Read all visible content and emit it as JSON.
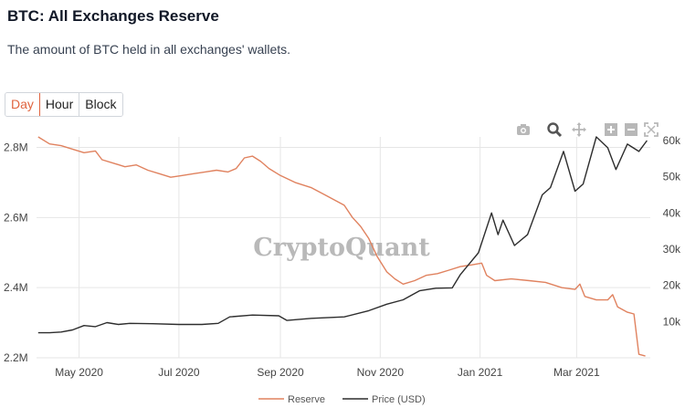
{
  "header": {
    "title": "BTC: All Exchanges Reserve",
    "subtitle": "The amount of BTC held in all exchanges' wallets."
  },
  "range_tabs": [
    {
      "label": "Day",
      "active": true
    },
    {
      "label": "Hour",
      "active": false
    },
    {
      "label": "Block",
      "active": false
    }
  ],
  "toolbar": {
    "icons": [
      "camera-icon",
      "zoom-icon",
      "pan-icon",
      "zoom-in-icon",
      "zoom-out-icon",
      "autoscale-icon"
    ]
  },
  "watermark": "CryptoQuant",
  "colors": {
    "reserve": "#e0825f",
    "price": "#2d2d2d",
    "accent": "#e0643f",
    "grid": "#e6e6e6"
  },
  "chart_data": {
    "type": "line",
    "x_range": [
      "2020-04-05",
      "2021-04-15"
    ],
    "x_ticks": [
      {
        "date": "2020-05-01",
        "label": "May 2020"
      },
      {
        "date": "2020-07-01",
        "label": "Jul 2020"
      },
      {
        "date": "2020-09-01",
        "label": "Sep 2020"
      },
      {
        "date": "2020-11-01",
        "label": "Nov 2020"
      },
      {
        "date": "2021-01-01",
        "label": "Jan 2021"
      },
      {
        "date": "2021-03-01",
        "label": "Mar 2021"
      }
    ],
    "y_left": {
      "range": [
        2200000,
        2830000
      ],
      "ticks": [
        {
          "value": 2200000,
          "label": "2.2M"
        },
        {
          "value": 2400000,
          "label": "2.4M"
        },
        {
          "value": 2600000,
          "label": "2.6M"
        },
        {
          "value": 2800000,
          "label": "2.8M"
        }
      ]
    },
    "y_right": {
      "range": [
        0,
        61000
      ],
      "ticks": [
        {
          "value": 10000,
          "label": "10k"
        },
        {
          "value": 20000,
          "label": "20k"
        },
        {
          "value": 30000,
          "label": "30k"
        },
        {
          "value": 40000,
          "label": "40k"
        },
        {
          "value": 50000,
          "label": "50k"
        },
        {
          "value": 60000,
          "label": "60k"
        }
      ]
    },
    "grid": true,
    "legend_position": "bottom-center",
    "series": [
      {
        "name": "Reserve",
        "axis": "left",
        "points": [
          [
            "2020-04-06",
            2830000
          ],
          [
            "2020-04-13",
            2810000
          ],
          [
            "2020-04-20",
            2805000
          ],
          [
            "2020-04-27",
            2795000
          ],
          [
            "2020-05-04",
            2785000
          ],
          [
            "2020-05-11",
            2790000
          ],
          [
            "2020-05-15",
            2765000
          ],
          [
            "2020-05-22",
            2755000
          ],
          [
            "2020-05-29",
            2745000
          ],
          [
            "2020-06-05",
            2750000
          ],
          [
            "2020-06-12",
            2735000
          ],
          [
            "2020-06-19",
            2725000
          ],
          [
            "2020-06-26",
            2715000
          ],
          [
            "2020-07-03",
            2720000
          ],
          [
            "2020-07-10",
            2725000
          ],
          [
            "2020-07-17",
            2730000
          ],
          [
            "2020-07-24",
            2735000
          ],
          [
            "2020-07-31",
            2730000
          ],
          [
            "2020-08-05",
            2740000
          ],
          [
            "2020-08-10",
            2770000
          ],
          [
            "2020-08-15",
            2775000
          ],
          [
            "2020-08-20",
            2760000
          ],
          [
            "2020-08-25",
            2740000
          ],
          [
            "2020-09-01",
            2720000
          ],
          [
            "2020-09-10",
            2700000
          ],
          [
            "2020-09-20",
            2685000
          ],
          [
            "2020-09-30",
            2660000
          ],
          [
            "2020-10-10",
            2635000
          ],
          [
            "2020-10-15",
            2600000
          ],
          [
            "2020-10-20",
            2575000
          ],
          [
            "2020-10-25",
            2540000
          ],
          [
            "2020-10-30",
            2490000
          ],
          [
            "2020-11-05",
            2445000
          ],
          [
            "2020-11-10",
            2425000
          ],
          [
            "2020-11-15",
            2410000
          ],
          [
            "2020-11-22",
            2420000
          ],
          [
            "2020-11-29",
            2435000
          ],
          [
            "2020-12-06",
            2440000
          ],
          [
            "2020-12-13",
            2450000
          ],
          [
            "2020-12-20",
            2460000
          ],
          [
            "2020-12-27",
            2465000
          ],
          [
            "2021-01-02",
            2470000
          ],
          [
            "2021-01-05",
            2435000
          ],
          [
            "2021-01-10",
            2420000
          ],
          [
            "2021-01-20",
            2425000
          ],
          [
            "2021-01-31",
            2420000
          ],
          [
            "2021-02-10",
            2415000
          ],
          [
            "2021-02-20",
            2400000
          ],
          [
            "2021-02-28",
            2395000
          ],
          [
            "2021-03-03",
            2410000
          ],
          [
            "2021-03-06",
            2375000
          ],
          [
            "2021-03-13",
            2365000
          ],
          [
            "2021-03-20",
            2365000
          ],
          [
            "2021-03-23",
            2380000
          ],
          [
            "2021-03-26",
            2345000
          ],
          [
            "2021-04-01",
            2330000
          ],
          [
            "2021-04-05",
            2325000
          ],
          [
            "2021-04-08",
            2210000
          ],
          [
            "2021-04-12",
            2205000
          ]
        ]
      },
      {
        "name": "Price (USD)",
        "axis": "right",
        "points": [
          [
            "2020-04-06",
            6900
          ],
          [
            "2020-04-13",
            6900
          ],
          [
            "2020-04-20",
            7100
          ],
          [
            "2020-04-27",
            7700
          ],
          [
            "2020-05-04",
            8900
          ],
          [
            "2020-05-11",
            8600
          ],
          [
            "2020-05-18",
            9700
          ],
          [
            "2020-05-25",
            9200
          ],
          [
            "2020-06-01",
            9500
          ],
          [
            "2020-06-15",
            9400
          ],
          [
            "2020-07-01",
            9200
          ],
          [
            "2020-07-15",
            9200
          ],
          [
            "2020-07-25",
            9500
          ],
          [
            "2020-08-01",
            11300
          ],
          [
            "2020-08-15",
            11800
          ],
          [
            "2020-08-31",
            11600
          ],
          [
            "2020-09-05",
            10300
          ],
          [
            "2020-09-20",
            10900
          ],
          [
            "2020-10-10",
            11300
          ],
          [
            "2020-10-25",
            13000
          ],
          [
            "2020-11-05",
            14800
          ],
          [
            "2020-11-15",
            16000
          ],
          [
            "2020-11-25",
            18500
          ],
          [
            "2020-12-05",
            19200
          ],
          [
            "2020-12-15",
            19300
          ],
          [
            "2020-12-20",
            23000
          ],
          [
            "2020-12-31",
            29000
          ],
          [
            "2021-01-08",
            40000
          ],
          [
            "2021-01-12",
            34000
          ],
          [
            "2021-01-15",
            38000
          ],
          [
            "2021-01-22",
            31000
          ],
          [
            "2021-01-30",
            34000
          ],
          [
            "2021-02-08",
            45000
          ],
          [
            "2021-02-13",
            47000
          ],
          [
            "2021-02-21",
            57000
          ],
          [
            "2021-02-28",
            46000
          ],
          [
            "2021-03-05",
            48000
          ],
          [
            "2021-03-13",
            61000
          ],
          [
            "2021-03-20",
            58000
          ],
          [
            "2021-03-25",
            52000
          ],
          [
            "2021-04-01",
            59000
          ],
          [
            "2021-04-08",
            57000
          ],
          [
            "2021-04-13",
            60000
          ]
        ]
      }
    ]
  }
}
